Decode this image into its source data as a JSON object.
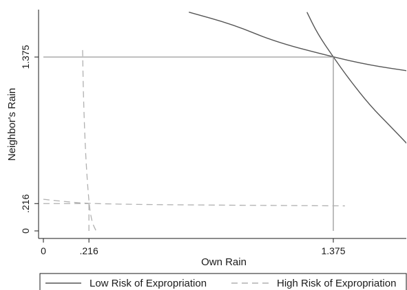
{
  "chart_data": {
    "type": "line",
    "title": "",
    "xlabel": "Own Rain",
    "ylabel": "Neighbor's Rain",
    "xlim": [
      0,
      1.73
    ],
    "ylim": [
      0,
      1.73
    ],
    "x_ticks": [
      {
        "value": 0,
        "label": "0"
      },
      {
        "value": 0.216,
        "label": ".216"
      },
      {
        "value": 1.375,
        "label": "1.375"
      }
    ],
    "y_ticks": [
      {
        "value": 0,
        "label": "0"
      },
      {
        "value": 0.216,
        "label": ".216"
      },
      {
        "value": 1.375,
        "label": "1.375"
      }
    ],
    "grid": false,
    "legend_position": "bottom",
    "colors": {
      "low_risk": "#555555",
      "low_risk_ref": "#999999",
      "high_risk": "#b0b0b0"
    },
    "series": [
      {
        "name": "Low Risk of Expropriation",
        "style": "solid",
        "curves": [
          {
            "role": "best-response-neighbor",
            "points": [
              [
                0.69,
                1.73
              ],
              [
                0.9,
                1.632
              ],
              [
                1.1,
                1.495
              ],
              [
                1.375,
                1.375
              ],
              [
                1.55,
                1.31
              ],
              [
                1.73,
                1.265
              ]
            ]
          },
          {
            "role": "best-response-own",
            "points": [
              [
                1.25,
                1.73
              ],
              [
                1.3,
                1.56
              ],
              [
                1.375,
                1.375
              ],
              [
                1.45,
                1.2
              ],
              [
                1.55,
                0.99
              ],
              [
                1.65,
                0.82
              ],
              [
                1.73,
                0.68
              ]
            ]
          },
          {
            "role": "reference-horizontal",
            "points": [
              [
                0,
                1.375
              ],
              [
                1.375,
                1.375
              ]
            ]
          },
          {
            "role": "reference-vertical",
            "points": [
              [
                1.375,
                0
              ],
              [
                1.375,
                1.375
              ]
            ]
          }
        ]
      },
      {
        "name": "High Risk of Expropriation",
        "style": "dashed",
        "curves": [
          {
            "role": "best-response-own",
            "points": [
              [
                0.186,
                1.43
              ],
              [
                0.19,
                1.05
              ],
              [
                0.2,
                0.6
              ],
              [
                0.216,
                0.216
              ],
              [
                0.23,
                0.07
              ],
              [
                0.25,
                0
              ]
            ]
          },
          {
            "role": "best-response-neighbor",
            "points": [
              [
                0,
                0.25
              ],
              [
                0.1,
                0.232
              ],
              [
                0.216,
                0.216
              ],
              [
                0.5,
                0.208
              ],
              [
                1.0,
                0.202
              ],
              [
                1.43,
                0.198
              ]
            ]
          },
          {
            "role": "reference-horizontal",
            "points": [
              [
                0,
                0.216
              ],
              [
                0.216,
                0.216
              ]
            ]
          },
          {
            "role": "reference-vertical",
            "points": [
              [
                0.216,
                0
              ],
              [
                0.216,
                0.216
              ]
            ]
          }
        ]
      }
    ]
  }
}
